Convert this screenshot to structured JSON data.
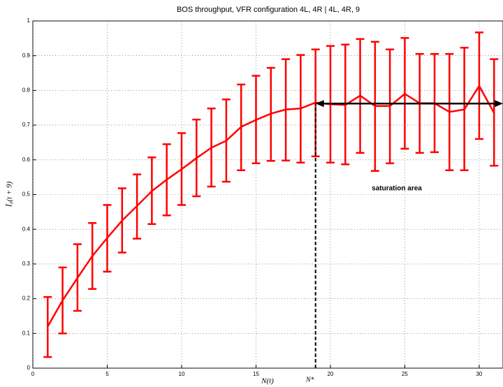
{
  "chart_data": {
    "type": "errorbar",
    "title": "BOS throughput, VFR configuration 4L, 4R | 4L, 4R, 9",
    "x_label": "N(t)",
    "y_label": "Ī₀(t + 9)",
    "x": [
      1,
      2,
      3,
      4,
      5,
      6,
      7,
      8,
      9,
      10,
      11,
      12,
      13,
      14,
      15,
      16,
      17,
      18,
      19,
      20,
      21,
      22,
      23,
      24,
      25,
      26,
      27,
      28,
      29,
      30,
      31
    ],
    "series": [
      {
        "color": "#ff0000",
        "values": [
          0.12,
          0.195,
          0.26,
          0.323,
          0.375,
          0.425,
          0.467,
          0.51,
          0.543,
          0.573,
          0.605,
          0.635,
          0.655,
          0.695,
          0.715,
          0.733,
          0.745,
          0.748,
          0.765,
          0.76,
          0.758,
          0.785,
          0.755,
          0.755,
          0.79,
          0.763,
          0.763,
          0.738,
          0.745,
          0.813,
          0.735
        ],
        "lower": [
          0.032,
          0.1,
          0.165,
          0.228,
          0.278,
          0.333,
          0.373,
          0.415,
          0.44,
          0.47,
          0.495,
          0.523,
          0.537,
          0.57,
          0.59,
          0.597,
          0.598,
          0.592,
          0.61,
          0.592,
          0.587,
          0.62,
          0.568,
          0.59,
          0.632,
          0.62,
          0.622,
          0.57,
          0.57,
          0.66,
          0.583
        ],
        "upper": [
          0.205,
          0.29,
          0.357,
          0.418,
          0.47,
          0.518,
          0.558,
          0.607,
          0.645,
          0.677,
          0.716,
          0.748,
          0.774,
          0.817,
          0.842,
          0.865,
          0.89,
          0.902,
          0.918,
          0.928,
          0.932,
          0.948,
          0.94,
          0.918,
          0.951,
          0.905,
          0.905,
          0.905,
          0.923,
          0.967,
          0.89
        ]
      }
    ],
    "marker": {
      "x": 19,
      "y": 0.762,
      "label": "N*"
    },
    "region_label": "saturation area",
    "xlim": [
      0,
      31.6
    ],
    "ylim": [
      0,
      1
    ],
    "xticks": [
      0,
      5,
      10,
      15,
      20,
      25,
      30
    ],
    "yticks": [
      0,
      0.1,
      0.2,
      0.3,
      0.4,
      0.5,
      0.6,
      0.7,
      0.8,
      0.9,
      1
    ],
    "grid": true
  }
}
